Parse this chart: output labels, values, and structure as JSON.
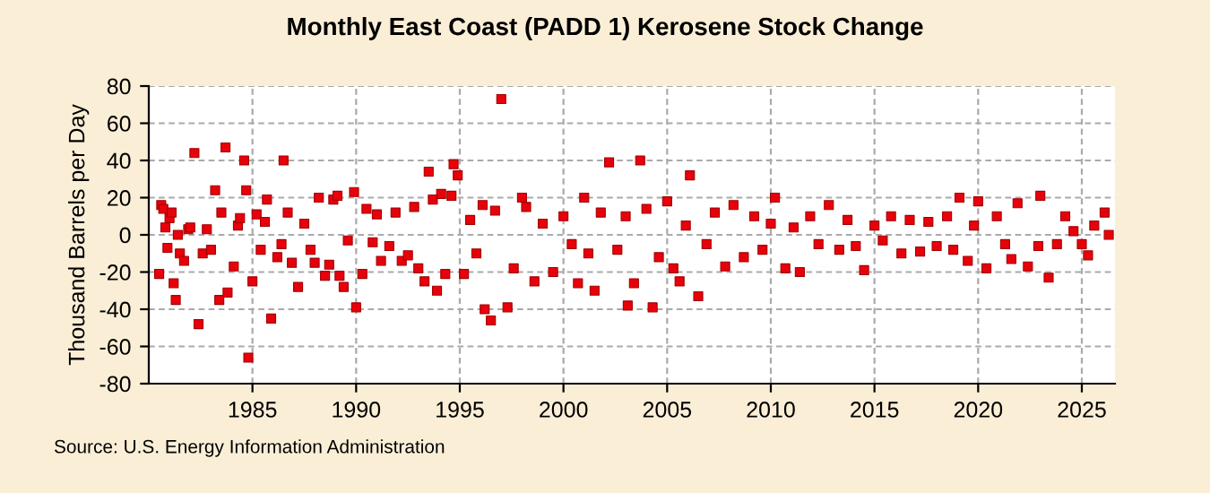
{
  "chart_data": {
    "type": "scatter",
    "title": "Monthly East Coast (PADD 1) Kerosene Stock Change",
    "ylabel": "Thousand Barrels per Day",
    "annotations": [
      "Source: U.S. Energy Information Administration"
    ],
    "x": [
      1980.5,
      1980.6,
      1980.7,
      1980.8,
      1980.9,
      1981.0,
      1981.1,
      1981.2,
      1981.3,
      1981.4,
      1981.5,
      1981.7,
      1981.9,
      1982.0,
      1982.2,
      1982.4,
      1982.6,
      1982.8,
      1983.0,
      1983.2,
      1983.4,
      1983.5,
      1983.7,
      1983.8,
      1984.1,
      1984.3,
      1984.4,
      1984.6,
      1984.7,
      1984.8,
      1985.0,
      1985.2,
      1985.4,
      1985.6,
      1985.7,
      1985.9,
      1986.2,
      1986.4,
      1986.5,
      1986.7,
      1986.9,
      1987.2,
      1987.5,
      1987.8,
      1988.0,
      1988.2,
      1988.5,
      1988.7,
      1988.9,
      1989.1,
      1989.2,
      1989.4,
      1989.6,
      1989.9,
      1990.0,
      1990.3,
      1990.5,
      1990.8,
      1991.0,
      1991.2,
      1991.6,
      1991.9,
      1992.2,
      1992.5,
      1992.8,
      1993.0,
      1993.3,
      1993.5,
      1993.7,
      1993.9,
      1994.1,
      1994.3,
      1994.6,
      1994.7,
      1994.9,
      1995.2,
      1995.5,
      1995.8,
      1996.1,
      1996.2,
      1996.5,
      1996.7,
      1997.0,
      1997.3,
      1997.6,
      1998.0,
      1998.2,
      1998.6,
      1999.0,
      1999.5,
      2000.0,
      2000.4,
      2000.7,
      2001.0,
      2001.2,
      2001.5,
      2001.8,
      2002.2,
      2002.6,
      2003.0,
      2003.1,
      2003.4,
      2003.7,
      2004.0,
      2004.3,
      2004.6,
      2005.0,
      2005.3,
      2005.6,
      2005.9,
      2006.1,
      2006.5,
      2006.9,
      2007.3,
      2007.8,
      2008.2,
      2008.7,
      2009.2,
      2009.6,
      2010.0,
      2010.2,
      2010.7,
      2011.1,
      2011.4,
      2011.9,
      2012.3,
      2012.8,
      2013.3,
      2013.7,
      2014.1,
      2014.5,
      2015.0,
      2015.4,
      2015.8,
      2016.3,
      2016.7,
      2017.2,
      2017.6,
      2018.0,
      2018.5,
      2018.8,
      2019.1,
      2019.5,
      2019.8,
      2020.0,
      2020.4,
      2020.9,
      2021.3,
      2021.6,
      2021.9,
      2022.4,
      2022.9,
      2023.0,
      2023.4,
      2023.8,
      2024.2,
      2024.6,
      2025.0,
      2025.3,
      2025.6,
      2026.1,
      2026.3
    ],
    "series": [
      {
        "color": "#e8000b",
        "values": [
          -21,
          16,
          14,
          4,
          -7,
          9,
          12,
          -26,
          -35,
          0,
          -10,
          -14,
          3,
          4,
          44,
          -48,
          -10,
          3,
          -8,
          24,
          -35,
          12,
          47,
          -31,
          -17,
          5,
          9,
          40,
          24,
          -66,
          -25,
          11,
          -8,
          7,
          19,
          -45,
          -12,
          -5,
          40,
          12,
          -15,
          -28,
          6,
          -8,
          -15,
          20,
          -22,
          -16,
          19,
          21,
          -22,
          -28,
          -3,
          23,
          -39,
          -21,
          14,
          -4,
          11,
          -14,
          -6,
          12,
          -14,
          -11,
          15,
          -18,
          -25,
          34,
          19,
          -30,
          22,
          -21,
          21,
          38,
          32,
          -21,
          8,
          -10,
          16,
          -40,
          -46,
          13,
          73,
          -39,
          -18,
          20,
          15,
          -25,
          6,
          -20,
          10,
          -5,
          -26,
          20,
          -10,
          -30,
          12,
          39,
          -8,
          10,
          -38,
          -26,
          40,
          14,
          -39,
          -12,
          18,
          -18,
          -25,
          5,
          32,
          -33,
          -5,
          12,
          -17,
          16,
          -12,
          10,
          -8,
          6,
          20,
          -18,
          4,
          -20,
          10,
          -5,
          16,
          -8,
          8,
          -6,
          -19,
          5,
          -3,
          10,
          -10,
          8,
          -9,
          7,
          -6,
          10,
          -8,
          20,
          -14,
          5,
          18,
          -18,
          10,
          -5,
          -13,
          17,
          -17,
          -6,
          21,
          -23,
          -5,
          10,
          2,
          -5,
          -11,
          5,
          12,
          0
        ]
      }
    ],
    "xlim": [
      1980,
      2026.6
    ],
    "ylim": [
      -80,
      80
    ],
    "xticks": [
      1985,
      1990,
      1995,
      2000,
      2005,
      2010,
      2015,
      2020,
      2025
    ],
    "yticks": [
      -80,
      -60,
      -40,
      -20,
      0,
      20,
      40,
      60,
      80
    ],
    "grid": true,
    "marker": "square"
  }
}
